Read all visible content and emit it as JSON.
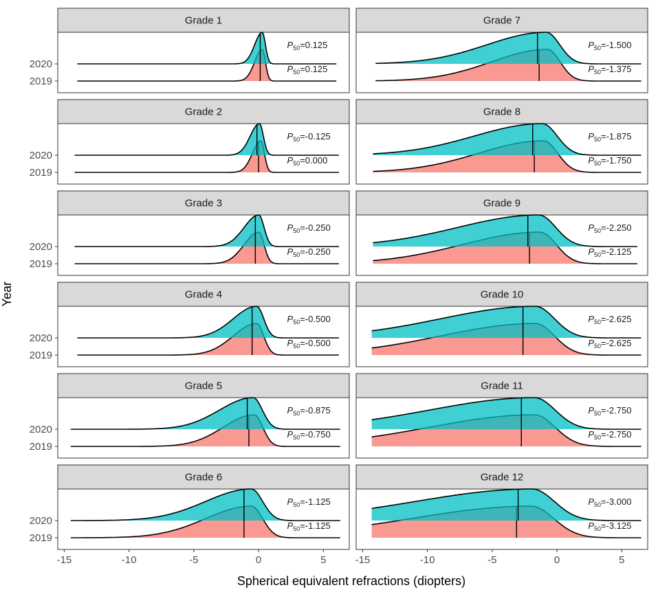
{
  "chart_data": {
    "type": "ridgeline",
    "title": "",
    "xlabel": "Spherical equivalent refractions (diopters)",
    "ylabel": "Year",
    "xlim": [
      -15.5,
      7
    ],
    "xticks": [
      -15,
      -10,
      -5,
      0,
      5
    ],
    "years": [
      "2020",
      "2019"
    ],
    "colors": {
      "2020": "#00BFC4",
      "2019": "#F8766D"
    },
    "p50_prefix": "P",
    "p50_subscript": "50",
    "panels": [
      {
        "grade": "Grade 1",
        "p50_2020": "0.125",
        "p50_2019": "0.125",
        "range_2020": [
          -14.0,
          6.0
        ],
        "range_2019": [
          -14.0,
          6.0
        ],
        "spread_2020": 0.45,
        "spread_2019": 0.45,
        "skew_2020": 1.3,
        "skew_2019": 1.3
      },
      {
        "grade": "Grade 2",
        "p50_2020": "-0.125",
        "p50_2019": "0.000",
        "range_2020": [
          -14.2,
          6.2
        ],
        "range_2019": [
          -14.2,
          6.2
        ],
        "spread_2020": 0.55,
        "spread_2019": 0.5,
        "skew_2020": 1.3,
        "skew_2019": 1.3
      },
      {
        "grade": "Grade 3",
        "p50_2020": "-0.250",
        "p50_2019": "-0.250",
        "range_2020": [
          -14.2,
          6.2
        ],
        "range_2019": [
          -14.2,
          6.2
        ],
        "spread_2020": 0.75,
        "spread_2019": 0.75,
        "skew_2020": 1.5,
        "skew_2019": 1.5
      },
      {
        "grade": "Grade 4",
        "p50_2020": "-0.500",
        "p50_2019": "-0.500",
        "range_2020": [
          -14.0,
          6.2
        ],
        "range_2019": [
          -14.0,
          6.2
        ],
        "spread_2020": 1.0,
        "spread_2019": 1.0,
        "skew_2020": 1.8,
        "skew_2019": 1.8
      },
      {
        "grade": "Grade 5",
        "p50_2020": "-0.875",
        "p50_2019": "-0.750",
        "range_2020": [
          -14.5,
          6.3
        ],
        "range_2019": [
          -14.5,
          6.3
        ],
        "spread_2020": 1.3,
        "spread_2019": 1.2,
        "skew_2020": 2.0,
        "skew_2019": 2.0
      },
      {
        "grade": "Grade 6",
        "p50_2020": "-1.125",
        "p50_2019": "-1.125",
        "range_2020": [
          -14.5,
          6.3
        ],
        "range_2019": [
          -14.5,
          6.3
        ],
        "spread_2020": 1.6,
        "spread_2019": 1.6,
        "skew_2020": 2.2,
        "skew_2019": 2.2
      },
      {
        "grade": "Grade 7",
        "p50_2020": "-1.500",
        "p50_2019": "-1.375",
        "range_2020": [
          -14.0,
          6.5
        ],
        "range_2019": [
          -14.0,
          6.5
        ],
        "spread_2020": 1.9,
        "spread_2019": 1.8,
        "skew_2020": 2.4,
        "skew_2019": 2.4
      },
      {
        "grade": "Grade 8",
        "p50_2020": "-1.875",
        "p50_2019": "-1.750",
        "range_2020": [
          -14.2,
          6.5
        ],
        "range_2019": [
          -14.2,
          6.5
        ],
        "spread_2020": 2.1,
        "spread_2019": 2.0,
        "skew_2020": 2.5,
        "skew_2019": 2.5
      },
      {
        "grade": "Grade 9",
        "p50_2020": "-2.250",
        "p50_2019": "-2.125",
        "range_2020": [
          -14.2,
          6.2
        ],
        "range_2019": [
          -14.2,
          6.2
        ],
        "spread_2020": 2.4,
        "spread_2019": 2.3,
        "skew_2020": 2.6,
        "skew_2019": 2.6
      },
      {
        "grade": "Grade 10",
        "p50_2020": "-2.625",
        "p50_2019": "-2.625",
        "range_2020": [
          -14.3,
          6.5
        ],
        "range_2019": [
          -14.3,
          6.5
        ],
        "spread_2020": 2.7,
        "spread_2019": 2.7,
        "skew_2020": 2.7,
        "skew_2019": 2.7
      },
      {
        "grade": "Grade 11",
        "p50_2020": "-2.750",
        "p50_2019": "-2.750",
        "range_2020": [
          -14.3,
          6.5
        ],
        "range_2019": [
          -14.3,
          6.5
        ],
        "spread_2020": 2.9,
        "spread_2019": 2.9,
        "skew_2020": 2.8,
        "skew_2019": 2.8
      },
      {
        "grade": "Grade 12",
        "p50_2020": "-3.000",
        "p50_2019": "-3.125",
        "range_2020": [
          -14.3,
          6.5
        ],
        "range_2019": [
          -14.3,
          6.5
        ],
        "spread_2020": 3.1,
        "spread_2019": 3.2,
        "skew_2020": 2.9,
        "skew_2019": 2.9
      }
    ]
  }
}
